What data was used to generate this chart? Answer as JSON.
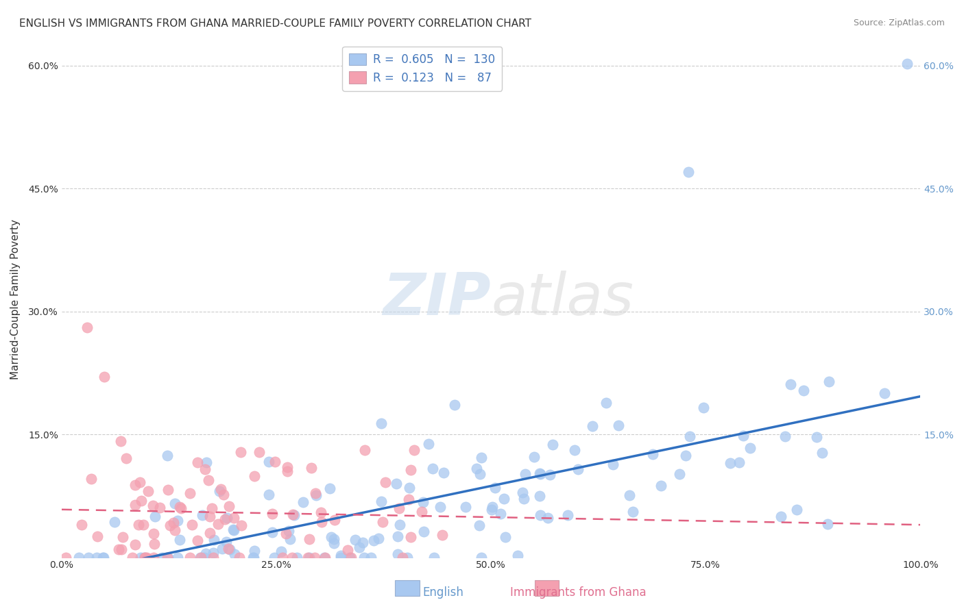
{
  "title": "ENGLISH VS IMMIGRANTS FROM GHANA MARRIED-COUPLE FAMILY POVERTY CORRELATION CHART",
  "source": "Source: ZipAtlas.com",
  "xlabel": "",
  "ylabel": "Married-Couple Family Poverty",
  "xlim": [
    0.0,
    1.0
  ],
  "ylim": [
    0.0,
    0.63
  ],
  "xticks": [
    0.0,
    0.25,
    0.5,
    0.75,
    1.0
  ],
  "xtick_labels": [
    "0.0%",
    "25.0%",
    "50.0%",
    "75.0%",
    "100.0%"
  ],
  "yticks": [
    0.0,
    0.15,
    0.3,
    0.45,
    0.6
  ],
  "ytick_labels": [
    "",
    "15.0%",
    "30.0%",
    "45.0%",
    "60.0%"
  ],
  "english_R": 0.605,
  "english_N": 130,
  "ghana_R": 0.123,
  "ghana_N": 87,
  "english_color": "#a8c8f0",
  "ghana_color": "#f4a0b0",
  "english_line_color": "#3070c0",
  "ghana_line_color": "#e06080",
  "background_color": "#ffffff",
  "watermark": "ZIPatlas",
  "watermark_color_zip": "#c8d8e8",
  "watermark_color_atlas": "#d0d0d0",
  "title_fontsize": 11,
  "axis_label_fontsize": 11,
  "tick_fontsize": 10,
  "legend_fontsize": 12,
  "english_seed": 42,
  "ghana_seed": 123
}
